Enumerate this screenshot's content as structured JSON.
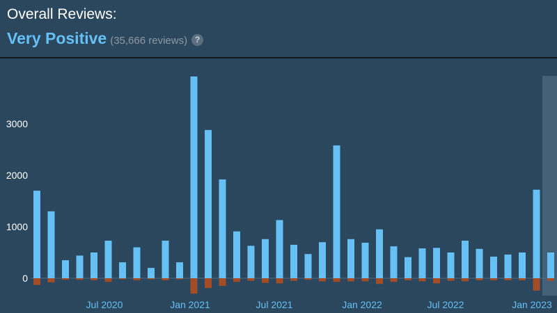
{
  "header": {
    "title": "Overall Reviews:",
    "rating": "Very Positive",
    "review_count": "(35,666 reviews)",
    "help_glyph": "?"
  },
  "colors": {
    "background": "#2a475e",
    "positive": "#66c0f4",
    "negative": "#a34c25",
    "highlight": "#4b6a82"
  },
  "chart_data": {
    "type": "bar",
    "x_tick_labels": [
      "Jul 2020",
      "Jan 2021",
      "Jul 2021",
      "Jan 2022",
      "Jul 2022",
      "Jan 2023"
    ],
    "y_tick_labels": [
      "0",
      "1000",
      "2000",
      "3000"
    ],
    "ylim": [
      -350,
      3900
    ],
    "grid": false,
    "highlighted_last": true,
    "series": [
      {
        "values": [
          1700,
          1300,
          350,
          440,
          500,
          730,
          310,
          600,
          200,
          730,
          310,
          3920,
          2880,
          1920,
          910,
          630,
          760,
          1130,
          650,
          470,
          700,
          2580,
          760,
          690,
          950,
          620,
          410,
          580,
          590,
          500,
          730,
          570,
          420,
          460,
          500,
          1720,
          500
        ]
      },
      {
        "values": [
          -130,
          -80,
          -30,
          -30,
          -40,
          -70,
          -20,
          -40,
          -20,
          -40,
          -20,
          -300,
          -190,
          -150,
          -70,
          -50,
          -90,
          -100,
          -50,
          -30,
          -60,
          -70,
          -60,
          -60,
          -110,
          -70,
          -40,
          -60,
          -100,
          -50,
          -60,
          -40,
          -40,
          -40,
          -40,
          -240,
          -50
        ]
      }
    ]
  }
}
